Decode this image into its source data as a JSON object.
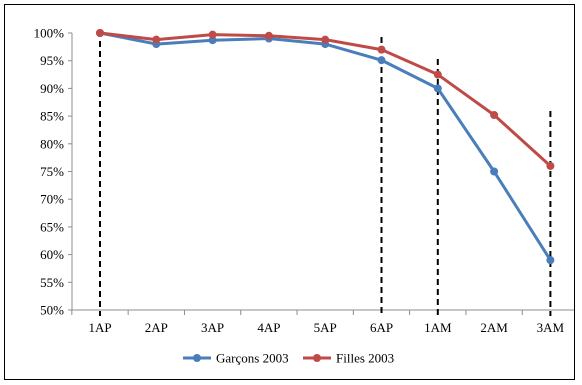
{
  "chart_data": {
    "type": "line",
    "title": "",
    "xlabel": "",
    "ylabel": "",
    "categories": [
      "1AP",
      "2AP",
      "3AP",
      "4AP",
      "5AP",
      "6AP",
      "1AM",
      "2AM",
      "3AM"
    ],
    "ylim": [
      0.5,
      1.0
    ],
    "ytick_values": [
      0.5,
      0.55,
      0.6,
      0.65,
      0.7,
      0.75,
      0.8,
      0.85,
      0.9,
      0.95,
      1.0
    ],
    "ytick_labels": [
      "50%",
      "55%",
      "60%",
      "65%",
      "70%",
      "75%",
      "80%",
      "85%",
      "90%",
      "95%",
      "100%"
    ],
    "grid": false,
    "legend_position": "bottom",
    "series": [
      {
        "name": "Garçons 2003",
        "color": "#4a7ebb",
        "values": [
          1.0,
          0.98,
          0.987,
          0.99,
          0.98,
          0.951,
          0.9,
          0.75,
          0.59
        ]
      },
      {
        "name": "Filles 2003",
        "color": "#be4b48",
        "values": [
          1.0,
          0.988,
          0.997,
          0.995,
          0.988,
          0.97,
          0.925,
          0.852,
          0.76
        ]
      }
    ],
    "vertical_dashed_lines_at": [
      "1AP",
      "6AP",
      "1AM",
      "3AM"
    ]
  }
}
